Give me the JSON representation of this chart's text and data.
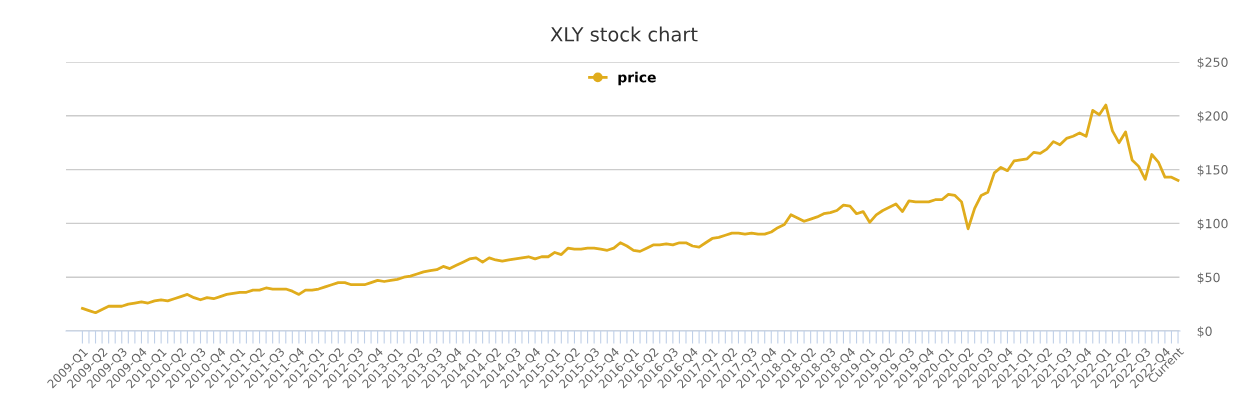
{
  "chart_data": {
    "type": "line",
    "title": "XLY stock chart",
    "categories": [
      "2009-Q1",
      null,
      null,
      "2009-Q2",
      null,
      null,
      "2009-Q3",
      null,
      null,
      "2009-Q4",
      null,
      null,
      "2010-Q1",
      null,
      null,
      "2010-Q2",
      null,
      null,
      "2010-Q3",
      null,
      null,
      "2010-Q4",
      null,
      null,
      "2011-Q1",
      null,
      null,
      "2011-Q2",
      null,
      null,
      "2011-Q3",
      null,
      null,
      "2011-Q4",
      null,
      null,
      "2012-Q1",
      null,
      null,
      "2012-Q2",
      null,
      null,
      "2012-Q3",
      null,
      null,
      "2012-Q4",
      null,
      null,
      "2013-Q1",
      null,
      null,
      "2013-Q2",
      null,
      null,
      "2013-Q3",
      null,
      null,
      "2013-Q4",
      null,
      null,
      "2014-Q1",
      null,
      null,
      "2014-Q2",
      null,
      null,
      "2014-Q3",
      null,
      null,
      "2014-Q4",
      null,
      null,
      "2015-Q1",
      null,
      null,
      "2015-Q2",
      null,
      null,
      "2015-Q3",
      null,
      null,
      "2015-Q4",
      null,
      null,
      "2016-Q1",
      null,
      null,
      "2016-Q2",
      null,
      null,
      "2016-Q3",
      null,
      null,
      "2016-Q4",
      null,
      null,
      "2017-Q1",
      null,
      null,
      "2017-Q2",
      null,
      null,
      "2017-Q3",
      null,
      null,
      "2017-Q4",
      null,
      null,
      "2018-Q1",
      null,
      null,
      "2018-Q2",
      null,
      null,
      "2018-Q3",
      null,
      null,
      "2018-Q4",
      null,
      null,
      "2019-Q1",
      null,
      null,
      "2019-Q2",
      null,
      null,
      "2019-Q3",
      null,
      null,
      "2019-Q4",
      null,
      null,
      "2020-Q1",
      null,
      null,
      "2020-Q2",
      null,
      null,
      "2020-Q3",
      null,
      null,
      "2020-Q4",
      null,
      null,
      "2021-Q1",
      null,
      null,
      "2021-Q2",
      null,
      null,
      "2021-Q3",
      null,
      null,
      "2021-Q4",
      null,
      null,
      "2022-Q1",
      null,
      null,
      "2022-Q2",
      null,
      null,
      "2022-Q3",
      null,
      null,
      "2022-Q4",
      null,
      "Current"
    ],
    "series": [
      {
        "name": "price",
        "color": "#e0ac1c",
        "values": [
          21,
          19,
          17,
          20,
          23,
          23,
          23,
          25,
          26,
          27,
          26,
          28,
          29,
          28,
          30,
          32,
          34,
          31,
          29,
          31,
          30,
          32,
          34,
          35,
          36,
          36,
          38,
          38,
          40,
          39,
          39,
          39,
          37,
          34,
          38,
          38,
          39,
          41,
          43,
          45,
          45,
          43,
          43,
          43,
          45,
          47,
          46,
          47,
          48,
          50,
          51,
          53,
          55,
          56,
          57,
          60,
          58,
          61,
          64,
          67,
          68,
          64,
          68,
          66,
          65,
          66,
          67,
          68,
          69,
          67,
          69,
          69,
          73,
          71,
          77,
          76,
          76,
          77,
          77,
          76,
          75,
          77,
          82,
          79,
          75,
          74,
          77,
          80,
          80,
          81,
          80,
          82,
          82,
          79,
          78,
          82,
          86,
          87,
          89,
          91,
          91,
          90,
          91,
          90,
          90,
          92,
          96,
          99,
          108,
          105,
          102,
          104,
          106,
          109,
          110,
          112,
          117,
          116,
          109,
          111,
          101,
          108,
          112,
          115,
          118,
          111,
          121,
          120,
          120,
          120,
          122,
          122,
          127,
          126,
          120,
          95,
          114,
          126,
          129,
          147,
          152,
          149,
          158,
          159,
          160,
          166,
          165,
          169,
          176,
          173,
          179,
          181,
          184,
          181,
          205,
          201,
          210,
          186,
          175,
          185,
          159,
          153,
          141,
          164,
          157,
          143,
          143,
          140
        ]
      }
    ],
    "ylim": [
      0,
      250
    ],
    "yticks": [
      {
        "value": 0,
        "label": "$0"
      },
      {
        "value": 50,
        "label": "$50"
      },
      {
        "value": 100,
        "label": "$100"
      },
      {
        "value": 150,
        "label": "$150"
      },
      {
        "value": 200,
        "label": "$200"
      },
      {
        "value": 250,
        "label": "$250"
      }
    ],
    "grid": "y",
    "legend": "top"
  }
}
